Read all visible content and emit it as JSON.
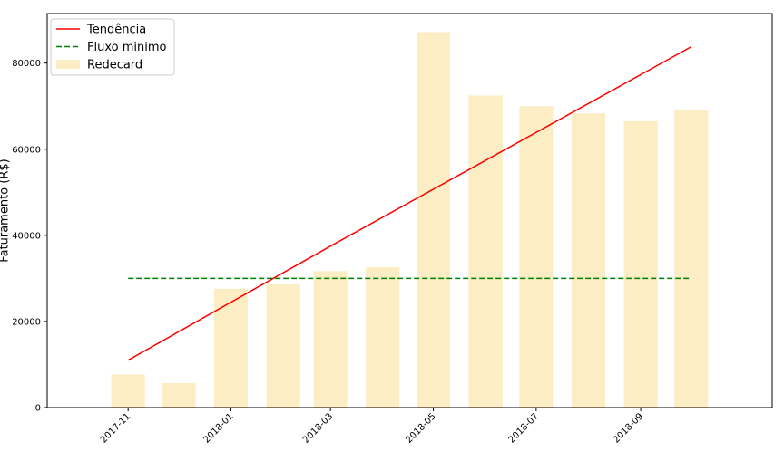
{
  "chart_data": {
    "type": "bar",
    "title": "",
    "xlabel": "",
    "ylabel": "Faturamento (R$)",
    "x_dates": [
      "2017-11-01",
      "2017-12-01",
      "2018-01-01",
      "2018-02-01",
      "2018-03-01",
      "2018-04-01",
      "2018-05-01",
      "2018-06-01",
      "2018-07-01",
      "2018-08-01",
      "2018-09-01",
      "2018-10-01"
    ],
    "x_range": [
      "2017-09-14",
      "2018-11-18"
    ],
    "ylim": [
      0,
      91500
    ],
    "x_ticks": [
      "2017-11-01",
      "2018-01-01",
      "2018-03-01",
      "2018-05-01",
      "2018-07-01",
      "2018-09-01"
    ],
    "x_tick_labels": [
      "2017-11",
      "2018-01",
      "2018-03",
      "2018-05",
      "2018-07",
      "2018-09"
    ],
    "y_ticks": [
      0,
      20000,
      40000,
      60000,
      80000
    ],
    "y_tick_labels": [
      "0",
      "20000",
      "40000",
      "60000",
      "80000"
    ],
    "grid": false,
    "legend_position": "top-left",
    "series": [
      {
        "name": "Redecard",
        "kind": "bar",
        "color": "#fcedc4",
        "values": [
          7700,
          5700,
          27600,
          28600,
          31700,
          32600,
          87200,
          72500,
          70000,
          68300,
          66500,
          69000
        ]
      },
      {
        "name": "Tendência",
        "kind": "line",
        "style": "solid",
        "color": "#ff0000",
        "x": [
          "2017-11-01",
          "2018-03-01",
          "2018-10-01"
        ],
        "values": [
          11000,
          37500,
          83800
        ]
      },
      {
        "name": "Fluxo minimo",
        "kind": "line",
        "style": "dashed",
        "color": "#008000",
        "x": [
          "2017-11-01",
          "2018-10-01"
        ],
        "values": [
          30000,
          30000
        ]
      }
    ]
  }
}
